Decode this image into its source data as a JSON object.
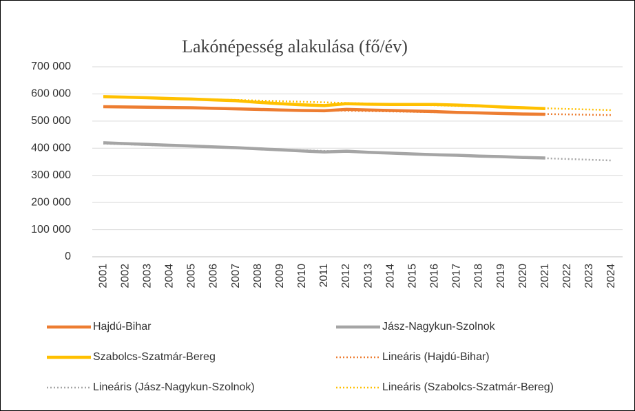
{
  "chart_data": {
    "type": "line",
    "title": "Lakónépesség alakulása (fő/év)",
    "categories": [
      "2001",
      "2002",
      "2003",
      "2004",
      "2005",
      "2006",
      "2007",
      "2008",
      "2009",
      "2010",
      "2011",
      "2012",
      "2013",
      "2014",
      "2015",
      "2016",
      "2017",
      "2018",
      "2019",
      "2020",
      "2021",
      "2022",
      "2023",
      "2024"
    ],
    "ylim": [
      0,
      700000
    ],
    "yticks": [
      0,
      {
        "value": 100000,
        "label": "100 000"
      },
      {
        "value": 200000,
        "label": "200 000"
      },
      {
        "value": 300000,
        "label": "300 000"
      },
      {
        "value": 400000,
        "label": "400 000"
      },
      {
        "value": 500000,
        "label": "500 000"
      },
      {
        "value": 600000,
        "label": "600 000"
      },
      {
        "value": 700000,
        "label": "700 000"
      }
    ],
    "grid": true,
    "legend": "bottom",
    "series": [
      {
        "name": "Hajdú-Bihar",
        "color": "#ed7d31",
        "style": "solid",
        "values": [
          553000,
          552000,
          551000,
          550000,
          549000,
          547000,
          545000,
          543000,
          541000,
          539000,
          538000,
          543000,
          541000,
          539000,
          537000,
          535000,
          532000,
          530000,
          528000,
          526000,
          525000,
          null,
          null,
          null
        ]
      },
      {
        "name": "Jász-Nagykun-Szolnok",
        "color": "#a5a5a5",
        "style": "solid",
        "values": [
          420000,
          417000,
          414000,
          411000,
          408000,
          405000,
          402000,
          398000,
          394000,
          390000,
          386000,
          389000,
          385000,
          382000,
          379000,
          376000,
          374000,
          371000,
          369000,
          366000,
          364000,
          null,
          null,
          null
        ]
      },
      {
        "name": "Szabolcs-Szatmár-Bereg",
        "color": "#ffc000",
        "style": "solid",
        "values": [
          590000,
          588000,
          586000,
          583000,
          581000,
          578000,
          575000,
          569000,
          564000,
          560000,
          557000,
          564000,
          562000,
          561000,
          561000,
          561000,
          559000,
          556000,
          552000,
          549000,
          546000,
          null,
          null,
          null
        ]
      },
      {
        "name": "Lineáris (Hajdú-Bihar)",
        "color": "#ed7d31",
        "style": "dotted",
        "values": [
          553000,
          551650,
          550300,
          548950,
          547600,
          546250,
          544900,
          543550,
          542200,
          540850,
          539500,
          538150,
          536800,
          535450,
          534100,
          532750,
          531400,
          530050,
          528700,
          527350,
          526000,
          524650,
          523300,
          521950
        ]
      },
      {
        "name": "Lineáris (Jász-Nagykun-Szolnok)",
        "color": "#a5a5a5",
        "style": "dotted",
        "values": [
          417000,
          414300,
          411600,
          408900,
          406200,
          403500,
          400800,
          398100,
          395400,
          392700,
          390000,
          387300,
          384600,
          381900,
          379200,
          376500,
          373800,
          371100,
          368400,
          365700,
          363000,
          360300,
          357600,
          354900
        ]
      },
      {
        "name": "Lineáris (Szabolcs-Szatmár-Bereg)",
        "color": "#ffc000",
        "style": "dotted",
        "values": [
          591000,
          588800,
          586600,
          584400,
          582200,
          580000,
          577800,
          575600,
          573400,
          571200,
          569000,
          566800,
          564600,
          562400,
          560200,
          558000,
          555800,
          553600,
          551400,
          549200,
          547000,
          544800,
          542600,
          540400
        ]
      }
    ]
  }
}
